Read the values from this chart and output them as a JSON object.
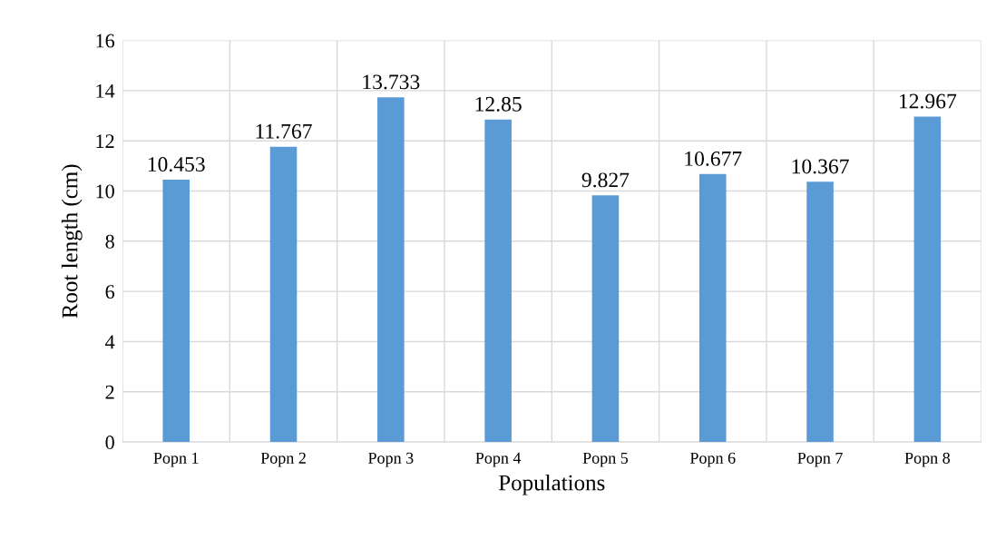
{
  "chart_data": {
    "type": "bar",
    "xlabel": "Populations",
    "ylabel": "Root length (cm)",
    "categories": [
      "Popn 1",
      "Popn 2",
      "Popn 3",
      "Popn 4",
      "Popn 5",
      "Popn 6",
      "Popn 7",
      "Popn 8"
    ],
    "values": [
      10.453,
      11.767,
      13.733,
      12.85,
      9.827,
      10.677,
      10.367,
      12.967
    ],
    "value_labels": [
      "10.453",
      "11.767",
      "13.733",
      "12.85",
      "9.827",
      "10.677",
      "10.367",
      "12.967"
    ],
    "color": "#5b9bd5",
    "ylim": [
      0,
      16
    ],
    "yticks": [
      0,
      2,
      4,
      6,
      8,
      10,
      12,
      14,
      16
    ],
    "grid": true
  }
}
